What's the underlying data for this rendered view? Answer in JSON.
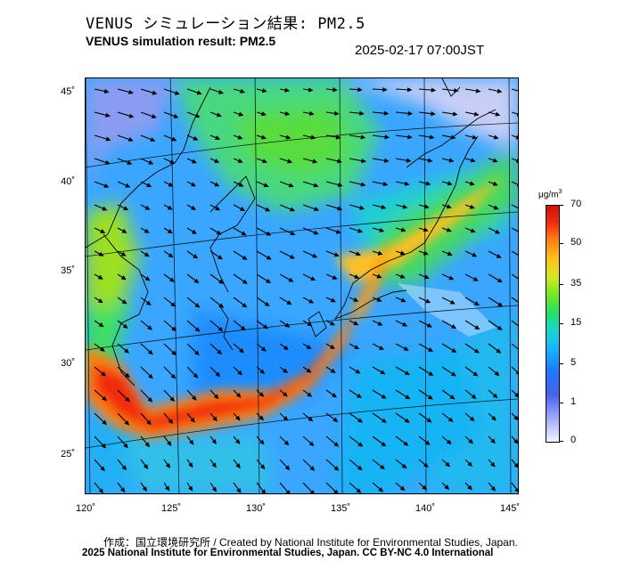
{
  "header": {
    "title_jp": "VENUS シミュレーション結果: PM2.5",
    "title_en": "VENUS simulation result: PM2.5",
    "timestamp": "2025-02-17 07:00JST"
  },
  "map": {
    "lat_labels": [
      "45˚",
      "40˚",
      "35˚",
      "30˚",
      "25˚"
    ],
    "lon_labels": [
      "120˚",
      "125˚",
      "130˚",
      "135˚",
      "140˚",
      "145˚"
    ]
  },
  "colorbar": {
    "unit": "μg/m",
    "unit_sup": "3",
    "labels": [
      "70",
      "50",
      "35",
      "15",
      "5",
      "1",
      "0"
    ],
    "colors": {
      "lowest": "#f2f2ff",
      "low": "#1e78ff",
      "mid": "#28e060",
      "high": "#ffc018",
      "highest": "#d0100a"
    }
  },
  "footer": {
    "credit": "作成：国立環境研究所 / Created by National Institute for Environmental Studies, Japan.",
    "license": "2025 National Institute for Environmental Studies, Japan. CC BY-NC 4.0 International"
  }
}
